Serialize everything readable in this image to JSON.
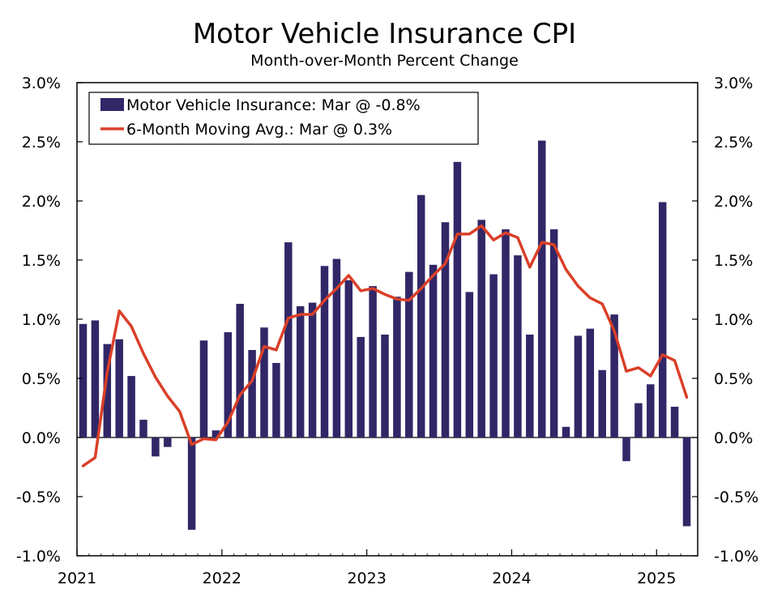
{
  "chart_data": {
    "type": "bar",
    "title": "Motor Vehicle Insurance CPI",
    "subtitle": "Month-over-Month Percent Change",
    "xlabel": "",
    "ylabel": "",
    "ylim": [
      -1.0,
      3.0
    ],
    "y_ticks": [
      "3.0%",
      "2.5%",
      "2.0%",
      "1.5%",
      "1.0%",
      "0.5%",
      "0.0%",
      "-0.5%",
      "-1.0%"
    ],
    "y_tick_values": [
      3.0,
      2.5,
      2.0,
      1.5,
      1.0,
      0.5,
      0.0,
      -0.5,
      -1.0
    ],
    "x_ticks": [
      "2021",
      "2022",
      "2023",
      "2024",
      "2025"
    ],
    "x_tick_month_index": [
      0,
      12,
      24,
      36,
      48
    ],
    "grid": false,
    "legend_position": "top-left",
    "categories": [
      "Jan 2021",
      "Feb 2021",
      "Mar 2021",
      "Apr 2021",
      "May 2021",
      "Jun 2021",
      "Jul 2021",
      "Aug 2021",
      "Sep 2021",
      "Oct 2021",
      "Nov 2021",
      "Dec 2021",
      "Jan 2022",
      "Feb 2022",
      "Mar 2022",
      "Apr 2022",
      "May 2022",
      "Jun 2022",
      "Jul 2022",
      "Aug 2022",
      "Sep 2022",
      "Oct 2022",
      "Nov 2022",
      "Dec 2022",
      "Jan 2023",
      "Feb 2023",
      "Mar 2023",
      "Apr 2023",
      "May 2023",
      "Jun 2023",
      "Jul 2023",
      "Aug 2023",
      "Sep 2023",
      "Oct 2023",
      "Nov 2023",
      "Dec 2023",
      "Jan 2024",
      "Feb 2024",
      "Mar 2024",
      "Apr 2024",
      "May 2024",
      "Jun 2024",
      "Jul 2024",
      "Aug 2024",
      "Sep 2024",
      "Oct 2024",
      "Nov 2024",
      "Dec 2024",
      "Jan 2025",
      "Feb 2025",
      "Mar 2025"
    ],
    "series": [
      {
        "name": "Motor Vehicle Insurance: Mar @ -0.8%",
        "type": "bar",
        "color": "#312767",
        "values": [
          0.96,
          0.99,
          0.79,
          0.83,
          0.52,
          0.15,
          -0.16,
          -0.08,
          0.0,
          -0.78,
          0.82,
          0.06,
          0.89,
          1.13,
          0.74,
          0.93,
          0.63,
          1.65,
          1.11,
          1.14,
          1.45,
          1.51,
          1.33,
          0.85,
          1.28,
          0.87,
          1.19,
          1.4,
          2.05,
          1.46,
          1.82,
          2.33,
          1.23,
          1.84,
          1.38,
          1.76,
          1.54,
          0.87,
          2.51,
          1.76,
          0.09,
          0.86,
          0.92,
          0.57,
          1.04,
          -0.2,
          0.29,
          0.45,
          1.99,
          0.26,
          -0.75
        ]
      },
      {
        "name": "6-Month Moving Avg.: Mar @ 0.3%",
        "type": "line",
        "color": "#DA3F28",
        "values": [
          -0.24,
          -0.17,
          0.55,
          1.07,
          0.94,
          0.71,
          0.51,
          0.35,
          0.22,
          -0.06,
          -0.01,
          -0.02,
          0.13,
          0.36,
          0.48,
          0.77,
          0.74,
          1.01,
          1.04,
          1.04,
          1.16,
          1.26,
          1.37,
          1.24,
          1.26,
          1.21,
          1.17,
          1.16,
          1.26,
          1.37,
          1.47,
          1.72,
          1.72,
          1.79,
          1.67,
          1.73,
          1.69,
          1.44,
          1.65,
          1.63,
          1.42,
          1.28,
          1.18,
          1.13,
          0.9,
          0.56,
          0.59,
          0.52,
          0.7,
          0.65,
          0.34
        ]
      }
    ]
  }
}
